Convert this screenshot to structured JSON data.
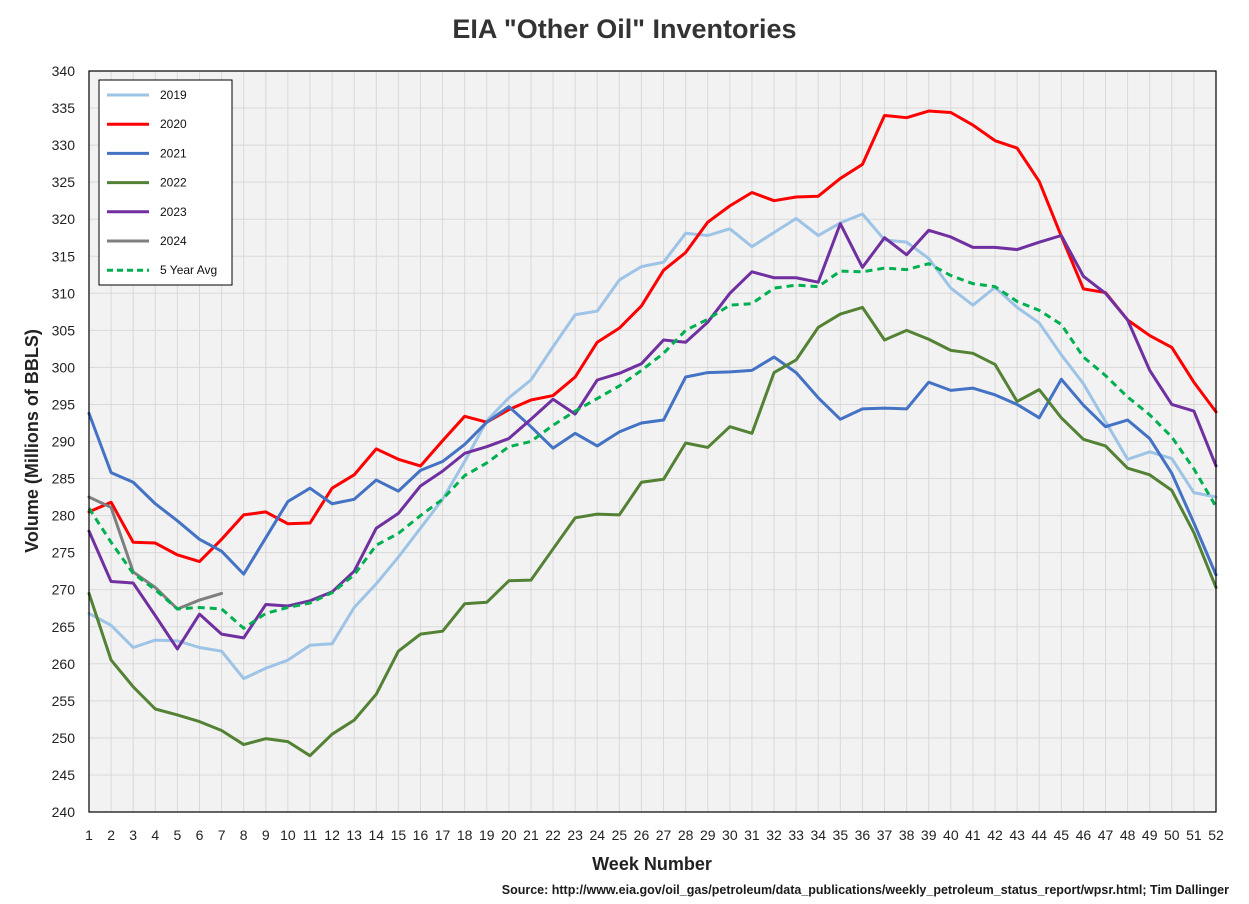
{
  "chart_data": {
    "type": "line",
    "title": "EIA \"Other Oil\" Inventories",
    "xlabel": "Week Number",
    "ylabel": "Volume (Millions of BBLS)",
    "xlim": [
      1,
      52
    ],
    "ylim": [
      240,
      340
    ],
    "y_ticks": [
      240,
      245,
      250,
      255,
      260,
      265,
      270,
      275,
      280,
      285,
      290,
      295,
      300,
      305,
      310,
      315,
      320,
      325,
      330,
      335,
      340
    ],
    "x_ticks": [
      1,
      2,
      3,
      4,
      5,
      6,
      7,
      8,
      9,
      10,
      11,
      12,
      13,
      14,
      15,
      16,
      17,
      18,
      19,
      20,
      21,
      22,
      23,
      24,
      25,
      26,
      27,
      28,
      29,
      30,
      31,
      32,
      33,
      34,
      35,
      36,
      37,
      38,
      39,
      40,
      41,
      42,
      43,
      44,
      45,
      46,
      47,
      48,
      49,
      50,
      51,
      52
    ],
    "grid": true,
    "legend_position": "top-left",
    "series": [
      {
        "name": "2019",
        "color": "#9DC3E6",
        "dashed": false,
        "values": [
          266.8,
          265.2,
          262.2,
          263.2,
          263.1,
          262.2,
          261.7,
          258.0,
          259.4,
          260.5,
          262.5,
          262.7,
          267.6,
          270.8,
          274.4,
          278.3,
          282.2,
          287.3,
          292.8,
          295.9,
          298.3,
          302.8,
          307.1,
          307.6,
          311.8,
          313.6,
          314.2,
          318.1,
          317.8,
          318.7,
          316.3,
          318.2,
          320.1,
          317.8,
          319.5,
          320.7,
          317.2,
          316.9,
          314.7,
          310.7,
          308.4,
          310.8,
          308.1,
          306.0,
          301.7,
          297.8,
          292.7,
          287.6,
          288.6,
          287.7,
          283.1,
          282.5
        ]
      },
      {
        "name": "2020",
        "color": "#FF0000",
        "dashed": false,
        "values": [
          280.5,
          281.8,
          276.4,
          276.3,
          274.7,
          273.8,
          276.8,
          280.1,
          280.5,
          278.9,
          279.0,
          283.7,
          285.5,
          289.0,
          287.6,
          286.7,
          290.1,
          293.4,
          292.6,
          294.3,
          295.6,
          296.2,
          298.7,
          303.4,
          305.3,
          308.3,
          313.1,
          315.5,
          319.6,
          321.8,
          323.6,
          322.5,
          323.0,
          323.1,
          325.5,
          327.4,
          334.0,
          333.7,
          334.6,
          334.4,
          332.7,
          330.6,
          329.6,
          325.1,
          317.7,
          310.6,
          310.1,
          306.4,
          304.3,
          302.7,
          298.0,
          294.0
        ]
      },
      {
        "name": "2021",
        "color": "#4472C4",
        "dashed": false,
        "values": [
          293.8,
          285.8,
          284.5,
          281.6,
          279.3,
          276.8,
          275.2,
          272.1,
          277.0,
          281.9,
          283.7,
          281.6,
          282.2,
          284.8,
          283.3,
          286.1,
          287.3,
          289.6,
          292.6,
          294.7,
          292.0,
          289.1,
          291.1,
          289.4,
          291.3,
          292.5,
          292.9,
          298.7,
          299.3,
          299.4,
          299.6,
          301.4,
          299.3,
          295.9,
          293.0,
          294.4,
          294.5,
          294.4,
          298.0,
          296.9,
          297.2,
          296.3,
          295.0,
          293.2,
          298.4,
          294.9,
          292.0,
          292.9,
          290.4,
          285.7,
          279.0,
          272.0
        ]
      },
      {
        "name": "2022",
        "color": "#548235",
        "dashed": false,
        "values": [
          269.5,
          260.5,
          256.9,
          253.9,
          253.1,
          252.2,
          251.0,
          249.1,
          249.9,
          249.5,
          247.6,
          250.5,
          252.4,
          255.9,
          261.7,
          264.0,
          264.4,
          268.1,
          268.3,
          271.2,
          271.3,
          275.5,
          279.7,
          280.2,
          280.1,
          284.5,
          284.9,
          289.8,
          289.2,
          292.0,
          291.1,
          299.3,
          301.0,
          305.4,
          307.2,
          308.1,
          303.7,
          305.0,
          303.8,
          302.3,
          301.9,
          300.4,
          295.4,
          297.0,
          293.2,
          290.3,
          289.4,
          286.4,
          285.5,
          283.4,
          277.7,
          270.3
        ]
      },
      {
        "name": "2023",
        "color": "#7030A0",
        "dashed": false,
        "values": [
          277.9,
          271.1,
          270.9,
          266.5,
          262.0,
          266.7,
          264.0,
          263.5,
          268.0,
          267.8,
          268.5,
          269.7,
          272.5,
          278.3,
          280.3,
          284.0,
          286.0,
          288.4,
          289.3,
          290.4,
          293.0,
          295.7,
          293.7,
          298.3,
          299.2,
          300.5,
          303.7,
          303.4,
          306.1,
          310.0,
          312.9,
          312.1,
          312.1,
          311.5,
          319.4,
          313.5,
          317.5,
          315.2,
          318.5,
          317.6,
          316.2,
          316.2,
          315.9,
          316.9,
          317.8,
          312.3,
          310.0,
          306.4,
          299.6,
          295.0,
          294.1,
          286.7
        ]
      },
      {
        "name": "2024",
        "color": "#7F7F7F",
        "dashed": false,
        "values": [
          282.5,
          281.1,
          272.4,
          270.3,
          267.4,
          268.6,
          269.5
        ]
      },
      {
        "name": "5 Year Avg",
        "color": "#00B050",
        "dashed": true,
        "values": [
          281.0,
          276.4,
          272.2,
          270.0,
          267.4,
          267.6,
          267.4,
          264.8,
          266.8,
          267.6,
          268.2,
          269.6,
          272.0,
          276.0,
          277.6,
          280.0,
          282.2,
          285.4,
          287.1,
          289.3,
          290.0,
          292.2,
          294.1,
          295.8,
          297.5,
          299.6,
          301.9,
          305.0,
          306.5,
          308.4,
          308.6,
          310.7,
          311.1,
          310.9,
          313.0,
          312.9,
          313.4,
          313.2,
          314.0,
          312.4,
          311.3,
          310.9,
          308.9,
          307.7,
          305.8,
          301.4,
          298.9,
          296.0,
          293.6,
          290.6,
          286.3,
          281.2
        ]
      }
    ]
  },
  "source_note": "Source: http://www.eia.gov/oil_gas/petroleum/data_publications/weekly_petroleum_status_report/wpsr.html; Tim Dallinger"
}
